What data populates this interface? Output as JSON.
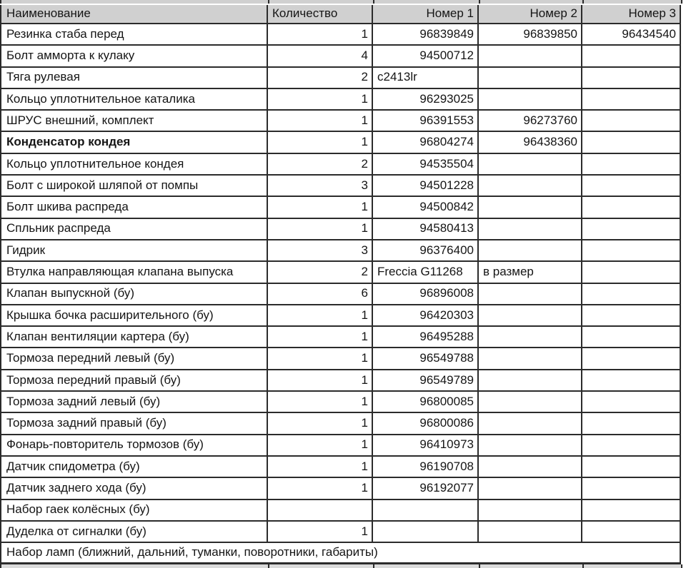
{
  "colors": {
    "header_bg": "#d0d0d0",
    "grid_border": "#2b2b2b",
    "row_bg": "#ffffff",
    "text": "#151515"
  },
  "table": {
    "header": {
      "name": "Наименование",
      "qty": "Количество",
      "num1": "Номер 1",
      "num2": "Номер 2",
      "num3": "Номер 3"
    },
    "rows": [
      {
        "name": "Резинка стаба перед",
        "qty": "1",
        "num1": "96839849",
        "num2": "96839850",
        "num3": "96434540",
        "bold": false
      },
      {
        "name": "Болт амморта к кулаку",
        "qty": "4",
        "num1": "94500712",
        "num2": "",
        "num3": "",
        "bold": false
      },
      {
        "name": "Тяга рулевая",
        "qty": "2",
        "num1": "c2413lr",
        "num2": "",
        "num3": "",
        "bold": false
      },
      {
        "name": "Кольцо уплотнительное каталика",
        "qty": "1",
        "num1": "96293025",
        "num2": "",
        "num3": "",
        "bold": false
      },
      {
        "name": "ШРУС внешний, комплект",
        "qty": "1",
        "num1": "96391553",
        "num2": "96273760",
        "num3": "",
        "bold": false
      },
      {
        "name": "Конденсатор кондея",
        "qty": "1",
        "num1": "96804274",
        "num2": "96438360",
        "num3": "",
        "bold": true
      },
      {
        "name": "Кольцо уплотнительное кондея",
        "qty": "2",
        "num1": "94535504",
        "num2": "",
        "num3": "",
        "bold": false
      },
      {
        "name": "Болт с широкой шляпой от помпы",
        "qty": "3",
        "num1": "94501228",
        "num2": "",
        "num3": "",
        "bold": false
      },
      {
        "name": "Болт шкива распреда",
        "qty": "1",
        "num1": "94500842",
        "num2": "",
        "num3": "",
        "bold": false
      },
      {
        "name": "Спльник распреда",
        "qty": "1",
        "num1": "94580413",
        "num2": "",
        "num3": "",
        "bold": false
      },
      {
        "name": "Гидрик",
        "qty": "3",
        "num1": "96376400",
        "num2": "",
        "num3": "",
        "bold": false
      },
      {
        "name": "Втулка направляющая клапана выпуска",
        "qty": "2",
        "num1": "Freccia G11268",
        "num2": "в размер",
        "num3": "",
        "bold": false
      },
      {
        "name": "Клапан выпускной (бу)",
        "qty": "6",
        "num1": "96896008",
        "num2": "",
        "num3": "",
        "bold": false
      },
      {
        "name": "Крышка бочка расширительного (бу)",
        "qty": "1",
        "num1": "96420303",
        "num2": "",
        "num3": "",
        "bold": false
      },
      {
        "name": "Клапан вентиляции картера (бу)",
        "qty": "1",
        "num1": "96495288",
        "num2": "",
        "num3": "",
        "bold": false
      },
      {
        "name": "Тормоза передний левый (бу)",
        "qty": "1",
        "num1": "96549788",
        "num2": "",
        "num3": "",
        "bold": false
      },
      {
        "name": "Тормоза передний правый (бу)",
        "qty": "1",
        "num1": "96549789",
        "num2": "",
        "num3": "",
        "bold": false
      },
      {
        "name": "Тормоза задний левый (бу)",
        "qty": "1",
        "num1": "96800085",
        "num2": "",
        "num3": "",
        "bold": false
      },
      {
        "name": "Тормоза задний правый (бу)",
        "qty": "1",
        "num1": "96800086",
        "num2": "",
        "num3": "",
        "bold": false
      },
      {
        "name": "Фонарь-повторитель тормозов (бу)",
        "qty": "1",
        "num1": "96410973",
        "num2": "",
        "num3": "",
        "bold": false
      },
      {
        "name": "Датчик спидометра (бу)",
        "qty": "1",
        "num1": "96190708",
        "num2": "",
        "num3": "",
        "bold": false
      },
      {
        "name": "Датчик заднего хода (бу)",
        "qty": "1",
        "num1": "96192077",
        "num2": "",
        "num3": "",
        "bold": false
      },
      {
        "name": "Набор гаек колёсных (бу)",
        "qty": "",
        "num1": "",
        "num2": "",
        "num3": "",
        "bold": false
      },
      {
        "name": "Дуделка от сигналки (бу)",
        "qty": "1",
        "num1": "",
        "num2": "",
        "num3": "",
        "bold": false
      }
    ],
    "footer_row": {
      "text": "Набор ламп (ближний, дальний, туманки, поворотники, габариты)"
    }
  }
}
